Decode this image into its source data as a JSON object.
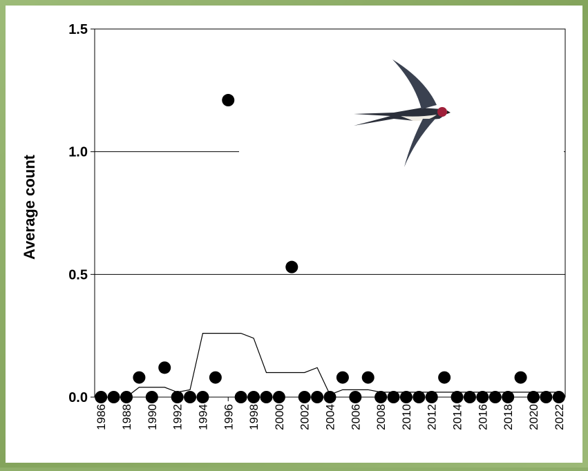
{
  "chart_data": {
    "type": "scatter",
    "y_label": "Average count",
    "x": [
      1986,
      1987,
      1988,
      1989,
      1990,
      1991,
      1992,
      1993,
      1994,
      1995,
      1996,
      1997,
      1998,
      1999,
      2000,
      2001,
      2002,
      2003,
      2004,
      2005,
      2006,
      2007,
      2008,
      2009,
      2010,
      2011,
      2012,
      2013,
      2014,
      2015,
      2016,
      2017,
      2018,
      2019,
      2020,
      2021,
      2022
    ],
    "series": [
      {
        "type": "scatter",
        "color": "#000000",
        "values": [
          0,
          0,
          0,
          0.08,
          0,
          0.12,
          0,
          0,
          0,
          0.08,
          1.21,
          0,
          0,
          0,
          0,
          0.53,
          0,
          0,
          0,
          0.08,
          0,
          0.08,
          0,
          0,
          0,
          0,
          0,
          0.08,
          0,
          0,
          0,
          0,
          0,
          0.08,
          0,
          0,
          0
        ]
      },
      {
        "type": "line",
        "color": "#000000",
        "values": [
          0,
          0,
          0,
          0.04,
          0.04,
          0.04,
          0.02,
          0.03,
          0.26,
          0.26,
          0.26,
          0.26,
          0.24,
          0.1,
          0.1,
          0.1,
          0.1,
          0.12,
          0.01,
          0.03,
          0.03,
          0.03,
          0.02,
          0.02,
          0.02,
          0.02,
          0.02,
          0.02,
          0.02,
          0.02,
          0.02,
          0.02,
          0.02,
          0.02,
          0.02,
          0.02,
          0.02
        ]
      }
    ],
    "xlim": [
      1985.5,
      2022.5
    ],
    "xticks": [
      1986,
      1988,
      1990,
      1992,
      1994,
      1996,
      1998,
      2000,
      2002,
      2004,
      2006,
      2008,
      2010,
      2012,
      2014,
      2016,
      2018,
      2020,
      2022
    ],
    "ylim": [
      0,
      1.5
    ],
    "yticks": [
      {
        "value": 0,
        "label": "0.0"
      },
      {
        "value": 0.5,
        "label": "0.5"
      },
      {
        "value": 1,
        "label": "1.0"
      },
      {
        "value": 1.5,
        "label": "1.5"
      }
    ],
    "grid": true
  }
}
